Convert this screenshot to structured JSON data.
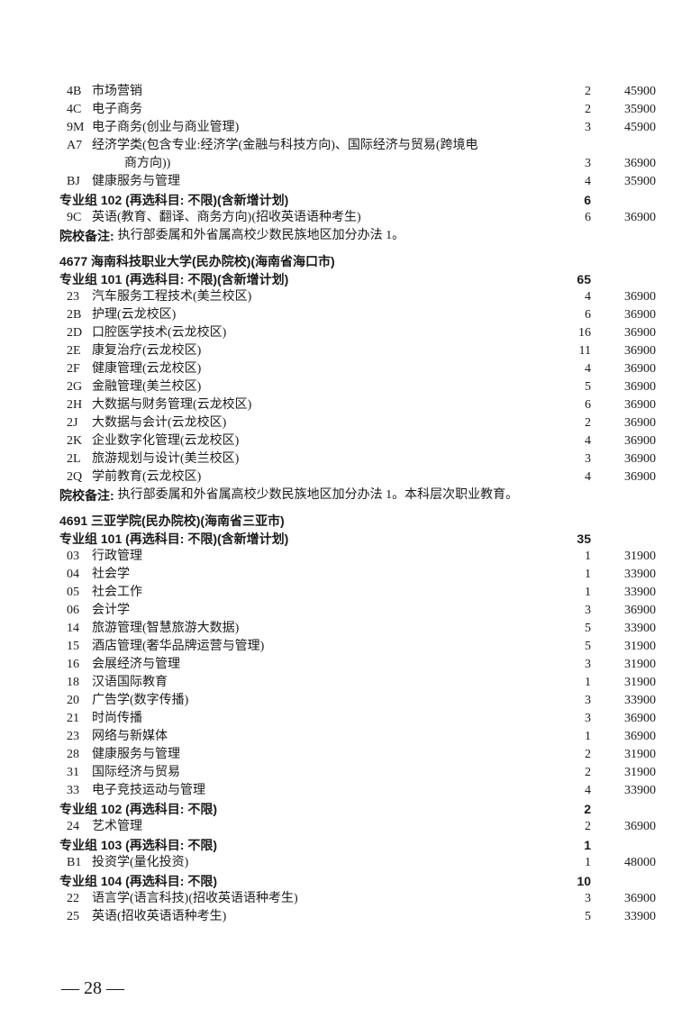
{
  "rows": [
    {
      "type": "item",
      "code": "4B",
      "name": "市场营销",
      "count": "2",
      "fee": "45900"
    },
    {
      "type": "item",
      "code": "4C",
      "name": "电子商务",
      "count": "2",
      "fee": "35900"
    },
    {
      "type": "item",
      "code": "9M",
      "name": "电子商务(创业与商业管理)",
      "count": "3",
      "fee": "45900"
    },
    {
      "type": "item",
      "code": "A7",
      "name": "经济学类(包含专业:经济学(金融与科技方向)、国际经济与贸易(跨境电"
    },
    {
      "type": "cont",
      "name": "商方向))",
      "count": "3",
      "fee": "36900"
    },
    {
      "type": "item",
      "code": "BJ",
      "name": "健康服务与管理",
      "count": "4",
      "fee": "35900"
    },
    {
      "type": "group",
      "name": "专业组 102 (再选科目: 不限)(含新增计划)",
      "count": "6"
    },
    {
      "type": "item",
      "code": "9C",
      "name": "英语(教育、翻译、商务方向)(招收英语语种考生)",
      "count": "6",
      "fee": "36900"
    },
    {
      "type": "note",
      "label": "院校备注:",
      "text": "执行部委属和外省属高校少数民族地区加分办法 1。"
    },
    {
      "type": "school",
      "name": "4677 海南科技职业大学(民办院校)(海南省海口市)"
    },
    {
      "type": "group",
      "name": "专业组 101 (再选科目: 不限)(含新增计划)",
      "count": "65"
    },
    {
      "type": "item",
      "code": "23",
      "name": "汽车服务工程技术(美兰校区)",
      "count": "4",
      "fee": "36900"
    },
    {
      "type": "item",
      "code": "2B",
      "name": "护理(云龙校区)",
      "count": "6",
      "fee": "36900"
    },
    {
      "type": "item",
      "code": "2D",
      "name": "口腔医学技术(云龙校区)",
      "count": "16",
      "fee": "36900"
    },
    {
      "type": "item",
      "code": "2E",
      "name": "康复治疗(云龙校区)",
      "count": "11",
      "fee": "36900"
    },
    {
      "type": "item",
      "code": "2F",
      "name": "健康管理(云龙校区)",
      "count": "4",
      "fee": "36900"
    },
    {
      "type": "item",
      "code": "2G",
      "name": "金融管理(美兰校区)",
      "count": "5",
      "fee": "36900"
    },
    {
      "type": "item",
      "code": "2H",
      "name": "大数据与财务管理(云龙校区)",
      "count": "6",
      "fee": "36900"
    },
    {
      "type": "item",
      "code": "2J",
      "name": "大数据与会计(云龙校区)",
      "count": "2",
      "fee": "36900"
    },
    {
      "type": "item",
      "code": "2K",
      "name": "企业数字化管理(云龙校区)",
      "count": "4",
      "fee": "36900"
    },
    {
      "type": "item",
      "code": "2L",
      "name": "旅游规划与设计(美兰校区)",
      "count": "3",
      "fee": "36900"
    },
    {
      "type": "item",
      "code": "2Q",
      "name": "学前教育(云龙校区)",
      "count": "4",
      "fee": "36900"
    },
    {
      "type": "note",
      "label": "院校备注:",
      "text": "执行部委属和外省属高校少数民族地区加分办法 1。本科层次职业教育。"
    },
    {
      "type": "school",
      "name": "4691 三亚学院(民办院校)(海南省三亚市)"
    },
    {
      "type": "group",
      "name": "专业组 101 (再选科目: 不限)(含新增计划)",
      "count": "35"
    },
    {
      "type": "item",
      "code": "03",
      "name": "行政管理",
      "count": "1",
      "fee": "31900"
    },
    {
      "type": "item",
      "code": "04",
      "name": "社会学",
      "count": "1",
      "fee": "33900"
    },
    {
      "type": "item",
      "code": "05",
      "name": "社会工作",
      "count": "1",
      "fee": "33900"
    },
    {
      "type": "item",
      "code": "06",
      "name": "会计学",
      "count": "3",
      "fee": "36900"
    },
    {
      "type": "item",
      "code": "14",
      "name": "旅游管理(智慧旅游大数据)",
      "count": "5",
      "fee": "33900"
    },
    {
      "type": "item",
      "code": "15",
      "name": "酒店管理(奢华品牌运营与管理)",
      "count": "5",
      "fee": "31900"
    },
    {
      "type": "item",
      "code": "16",
      "name": "会展经济与管理",
      "count": "3",
      "fee": "31900"
    },
    {
      "type": "item",
      "code": "18",
      "name": "汉语国际教育",
      "count": "1",
      "fee": "31900"
    },
    {
      "type": "item",
      "code": "20",
      "name": "广告学(数字传播)",
      "count": "3",
      "fee": "33900"
    },
    {
      "type": "item",
      "code": "21",
      "name": "时尚传播",
      "count": "3",
      "fee": "36900"
    },
    {
      "type": "item",
      "code": "23",
      "name": "网络与新媒体",
      "count": "1",
      "fee": "36900"
    },
    {
      "type": "item",
      "code": "28",
      "name": "健康服务与管理",
      "count": "2",
      "fee": "31900"
    },
    {
      "type": "item",
      "code": "31",
      "name": "国际经济与贸易",
      "count": "2",
      "fee": "31900"
    },
    {
      "type": "item",
      "code": "33",
      "name": "电子竞技运动与管理",
      "count": "4",
      "fee": "33900"
    },
    {
      "type": "group",
      "name": "专业组 102 (再选科目: 不限)",
      "count": "2"
    },
    {
      "type": "item",
      "code": "24",
      "name": "艺术管理",
      "count": "2",
      "fee": "36900"
    },
    {
      "type": "group",
      "name": "专业组 103 (再选科目: 不限)",
      "count": "1"
    },
    {
      "type": "item",
      "code": "B1",
      "name": "投资学(量化投资)",
      "count": "1",
      "fee": "48000"
    },
    {
      "type": "group",
      "name": "专业组 104 (再选科目: 不限)",
      "count": "10"
    },
    {
      "type": "item",
      "code": "22",
      "name": "语言学(语言科技)(招收英语语种考生)",
      "count": "3",
      "fee": "36900"
    },
    {
      "type": "item",
      "code": "25",
      "name": "英语(招收英语语种考生)",
      "count": "5",
      "fee": "33900"
    }
  ],
  "page_number": "— 28 —"
}
